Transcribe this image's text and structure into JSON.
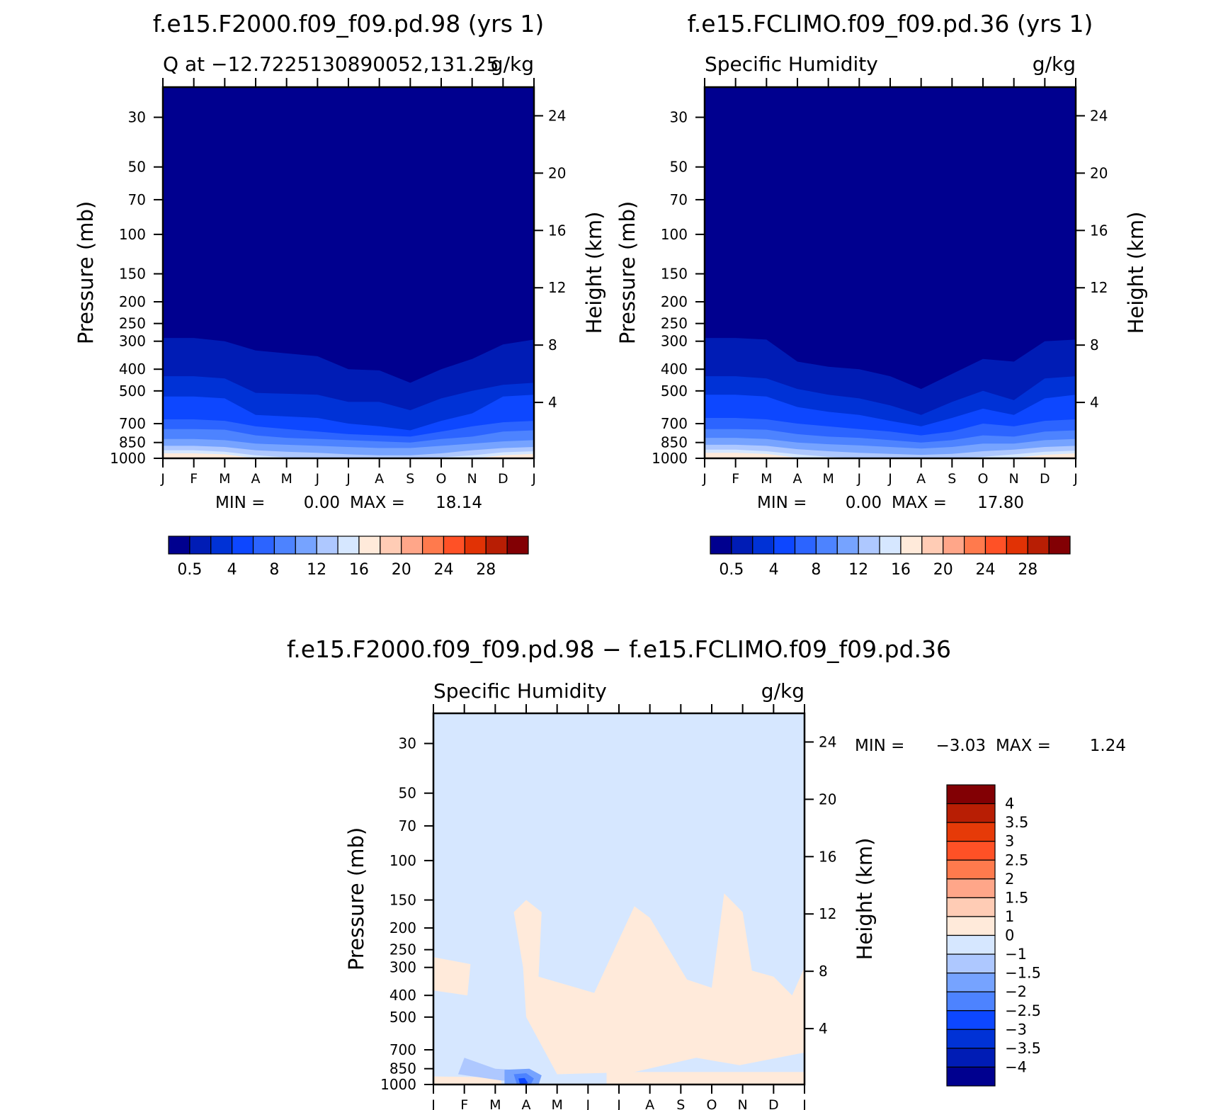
{
  "chart_data": [
    {
      "type": "heatmap",
      "title": "f.e15.F2000.f09_f09.pd.98 (yrs 1)",
      "subtitle_left": "Q at −12.7225130890052,131.25",
      "subtitle_right": "g/kg",
      "ylabel": "Pressure (mb)",
      "ylabel_right": "Height (km)",
      "x_ticks": [
        "J",
        "F",
        "M",
        "A",
        "M",
        "J",
        "J",
        "A",
        "S",
        "O",
        "N",
        "D",
        "J"
      ],
      "y_ticks": [
        "30",
        "50",
        "70",
        "100",
        "150",
        "200",
        "250",
        "300",
        "400",
        "500",
        "700",
        "850",
        "1000"
      ],
      "y_ticks_right": [
        "24",
        "20",
        "16",
        "12",
        "8",
        "4"
      ],
      "min_label": "MIN =",
      "min_value": "0.00",
      "max_label": "MAX =",
      "max_value": "18.14",
      "colorbar_labels": [
        "0.5",
        "4",
        "8",
        "12",
        "16",
        "20",
        "24",
        "28"
      ],
      "band_tops_mb": [
        [
          290,
          290,
          300,
          330,
          340,
          350,
          400,
          405,
          460,
          400,
          360,
          310,
          295
        ],
        [
          430,
          430,
          440,
          510,
          515,
          520,
          560,
          560,
          610,
          540,
          500,
          470,
          460
        ],
        [
          530,
          530,
          540,
          640,
          650,
          660,
          700,
          720,
          750,
          680,
          630,
          530,
          520
        ],
        [
          670,
          670,
          680,
          720,
          740,
          760,
          780,
          790,
          800,
          760,
          720,
          690,
          680
        ],
        [
          740,
          740,
          745,
          790,
          810,
          820,
          830,
          840,
          850,
          820,
          800,
          760,
          750
        ],
        [
          820,
          820,
          830,
          860,
          870,
          880,
          890,
          900,
          900,
          880,
          860,
          840,
          830
        ],
        [
          880,
          880,
          890,
          920,
          935,
          945,
          960,
          970,
          970,
          950,
          920,
          900,
          890
        ],
        [
          920,
          920,
          935,
          970,
          990,
          1000,
          1000,
          1000,
          1000,
          990,
          970,
          940,
          930
        ],
        [
          950,
          950,
          960,
          1000,
          1000,
          1000,
          1000,
          1000,
          1000,
          1000,
          1000,
          970,
          955
        ]
      ]
    },
    {
      "type": "heatmap",
      "title": "f.e15.FCLIMO.f09_f09.pd.36 (yrs 1)",
      "subtitle_left": "Specific Humidity",
      "subtitle_right": "g/kg",
      "ylabel": "Pressure (mb)",
      "ylabel_right": "Height (km)",
      "x_ticks": [
        "J",
        "F",
        "M",
        "A",
        "M",
        "J",
        "J",
        "A",
        "S",
        "O",
        "N",
        "D",
        "J"
      ],
      "y_ticks": [
        "30",
        "50",
        "70",
        "100",
        "150",
        "200",
        "250",
        "300",
        "400",
        "500",
        "700",
        "850",
        "1000"
      ],
      "y_ticks_right": [
        "24",
        "20",
        "16",
        "12",
        "8",
        "4"
      ],
      "min_label": "MIN =",
      "min_value": "0.00",
      "max_label": "MAX =",
      "max_value": "17.80",
      "colorbar_labels": [
        "0.5",
        "4",
        "8",
        "12",
        "16",
        "20",
        "24",
        "28"
      ],
      "band_tops_mb": [
        [
          290,
          290,
          295,
          370,
          390,
          400,
          430,
          490,
          420,
          360,
          370,
          300,
          295
        ],
        [
          430,
          430,
          440,
          490,
          520,
          540,
          580,
          640,
          560,
          500,
          550,
          440,
          430
        ],
        [
          520,
          520,
          530,
          590,
          620,
          640,
          680,
          720,
          660,
          600,
          640,
          540,
          520
        ],
        [
          660,
          660,
          670,
          700,
          720,
          740,
          760,
          790,
          760,
          700,
          720,
          680,
          670
        ],
        [
          740,
          740,
          745,
          780,
          800,
          810,
          830,
          850,
          830,
          790,
          800,
          760,
          750
        ],
        [
          810,
          810,
          820,
          850,
          865,
          875,
          890,
          905,
          890,
          860,
          860,
          830,
          820
        ],
        [
          870,
          870,
          880,
          910,
          930,
          945,
          955,
          965,
          955,
          930,
          915,
          890,
          880
        ],
        [
          915,
          915,
          930,
          960,
          985,
          1000,
          1000,
          1000,
          1000,
          985,
          960,
          935,
          925
        ],
        [
          945,
          945,
          955,
          995,
          1000,
          1000,
          1000,
          1000,
          1000,
          1000,
          995,
          965,
          950
        ]
      ]
    },
    {
      "type": "heatmap",
      "title": "f.e15.F2000.f09_f09.pd.98 − f.e15.FCLIMO.f09_f09.pd.36",
      "subtitle_left": "Specific Humidity",
      "subtitle_right": "g/kg",
      "ylabel": "Pressure (mb)",
      "ylabel_right": "Height (km)",
      "x_ticks": [
        "J",
        "F",
        "M",
        "A",
        "M",
        "J",
        "J",
        "A",
        "S",
        "O",
        "N",
        "D",
        "J"
      ],
      "y_ticks": [
        "30",
        "50",
        "70",
        "100",
        "150",
        "200",
        "250",
        "300",
        "400",
        "500",
        "700",
        "850",
        "1000"
      ],
      "y_ticks_right": [
        "24",
        "20",
        "16",
        "12",
        "8",
        "4"
      ],
      "min_label": "MIN =",
      "min_value": "−3.03",
      "max_label": "MAX =",
      "max_value": "1.24",
      "colorbar_labels": [
        "4",
        "3.5",
        "3",
        "2.5",
        "2",
        "1.5",
        "1",
        "0",
        "−1",
        "−1.5",
        "−2",
        "−2.5",
        "−3",
        "−3.5",
        "−4"
      ],
      "background_level": "0 to −1",
      "positive_regions_month_mb": [
        [
          [
            0,
            270
          ],
          [
            1.2,
            290
          ],
          [
            1.1,
            400
          ],
          [
            0,
            380
          ]
        ],
        [
          [
            2.6,
            170
          ],
          [
            3.0,
            150
          ],
          [
            3.5,
            170
          ],
          [
            3.4,
            330
          ],
          [
            5.2,
            390
          ],
          [
            6.5,
            160
          ],
          [
            7.0,
            180
          ],
          [
            8.2,
            340
          ],
          [
            9.0,
            370
          ],
          [
            9.4,
            140
          ],
          [
            10.0,
            170
          ],
          [
            10.3,
            310
          ],
          [
            11.0,
            330
          ],
          [
            11.6,
            400
          ],
          [
            12.0,
            300
          ],
          [
            12.0,
            720
          ],
          [
            9.9,
            820
          ],
          [
            8.5,
            760
          ],
          [
            6.5,
            880
          ],
          [
            4.0,
            900
          ],
          [
            3.0,
            500
          ],
          [
            2.9,
            300
          ]
        ],
        [
          [
            0,
            920
          ],
          [
            2.2,
            930
          ],
          [
            2.2,
            1000
          ],
          [
            0,
            1000
          ]
        ],
        [
          [
            5.6,
            880
          ],
          [
            12,
            880
          ],
          [
            12,
            1000
          ],
          [
            5.6,
            1000
          ]
        ]
      ],
      "negative_regions_month_mb": [
        [
          [
            1.0,
            760
          ],
          [
            2.0,
            850
          ],
          [
            3.2,
            870
          ],
          [
            3.4,
            960
          ],
          [
            2.2,
            960
          ],
          [
            0.8,
            900
          ]
        ],
        [
          [
            2.3,
            860
          ],
          [
            3.1,
            850
          ],
          [
            3.5,
            910
          ],
          [
            3.4,
            1000
          ],
          [
            2.3,
            1000
          ]
        ],
        [
          [
            2.6,
            900
          ],
          [
            3.0,
            890
          ],
          [
            3.25,
            940
          ],
          [
            3.15,
            1000
          ],
          [
            2.7,
            1000
          ]
        ],
        [
          [
            2.75,
            940
          ],
          [
            2.95,
            935
          ],
          [
            3.05,
            980
          ],
          [
            3.0,
            1000
          ],
          [
            2.8,
            1000
          ]
        ]
      ]
    }
  ],
  "colors": {
    "humidity_scale": [
      "#00008f",
      "#001cb5",
      "#0032d6",
      "#0d47ff",
      "#2c64ff",
      "#4d83ff",
      "#76a3ff",
      "#aec8ff",
      "#d6e7ff",
      "#ffeada",
      "#ffccb5",
      "#ffa689",
      "#ff7a4d",
      "#ff5126",
      "#e13205",
      "#b81e04",
      "#820004"
    ],
    "difference_scale": [
      "#820004",
      "#b81e04",
      "#e63a08",
      "#ff5126",
      "#ff7a4d",
      "#ffa689",
      "#ffccb5",
      "#ffeada",
      "#d6e7ff",
      "#aec8ff",
      "#76a3ff",
      "#4d83ff",
      "#0d47ff",
      "#0032d6",
      "#001cb5",
      "#00008f"
    ]
  }
}
